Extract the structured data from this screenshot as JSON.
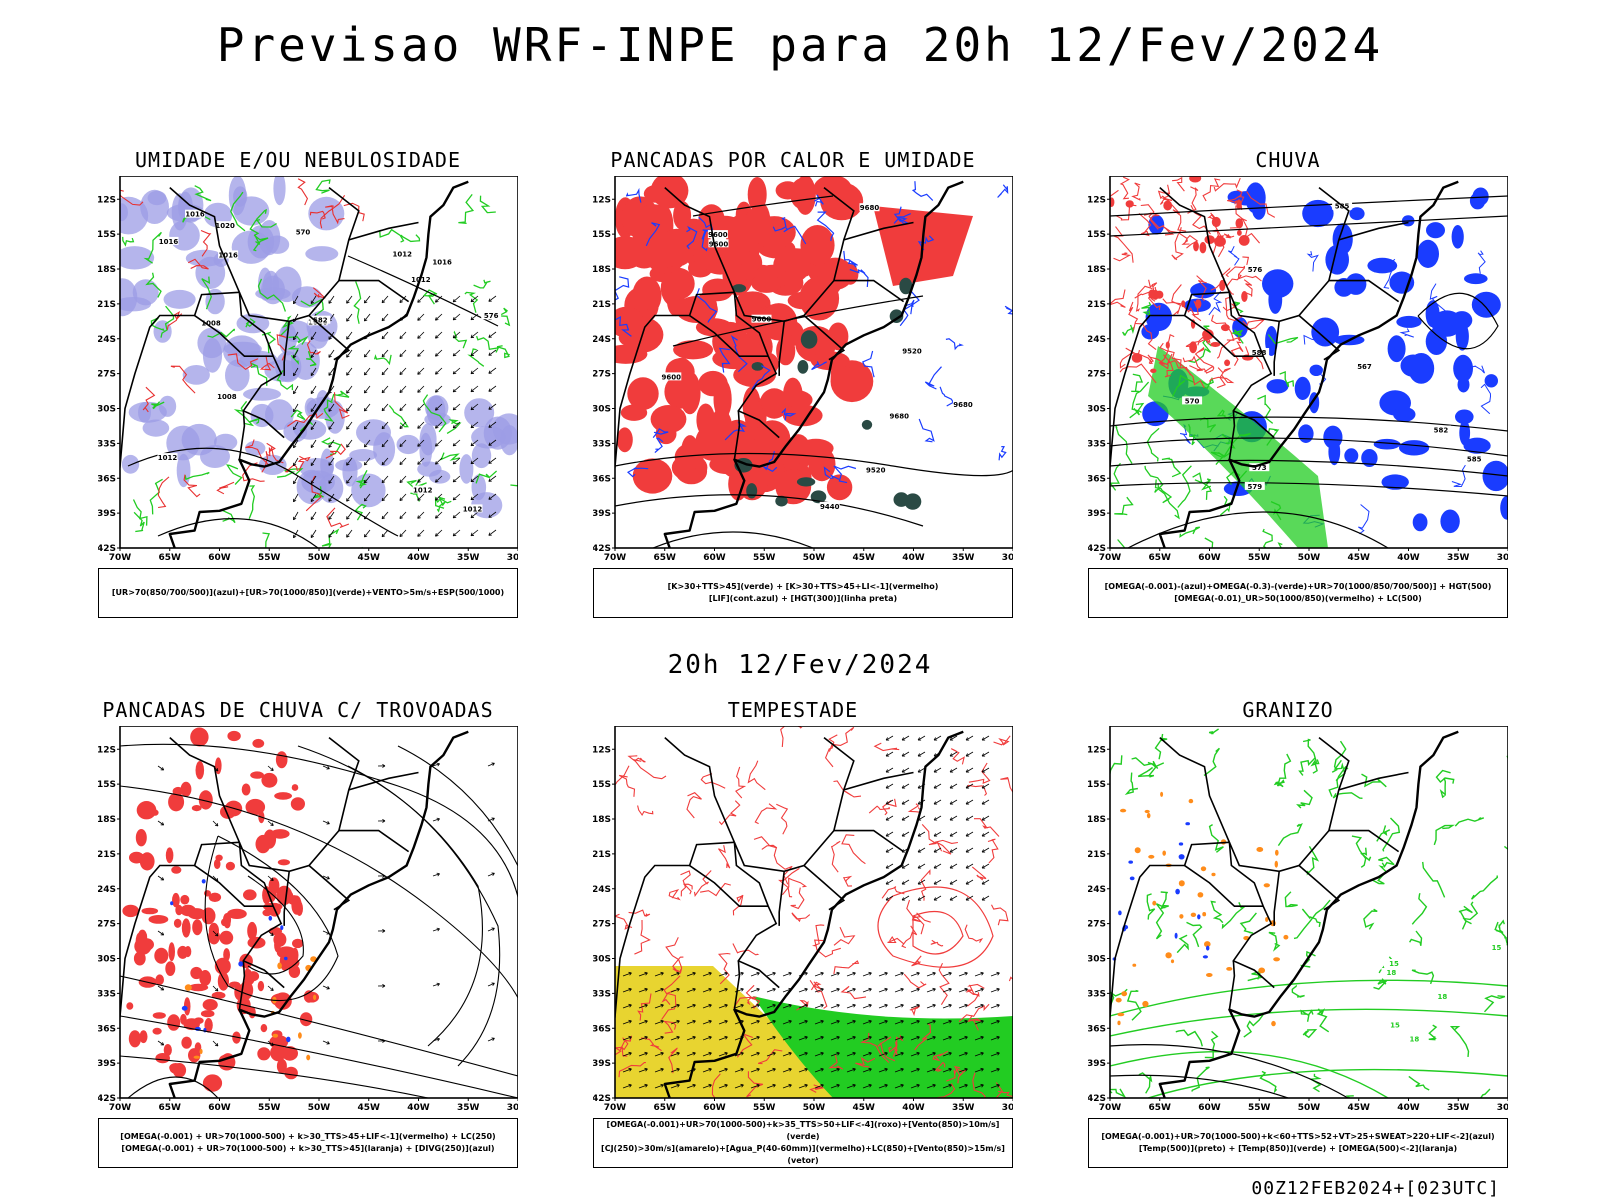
{
  "header": {
    "title": "Previsao WRF-INPE  para 20h 12/Fev/2024"
  },
  "mid_date": "20h 12/Fev/2024",
  "footer": "00Z12FEB2024+[023UTC]",
  "axes": {
    "lat_ticks": [
      "12S",
      "15S",
      "18S",
      "21S",
      "24S",
      "27S",
      "30S",
      "33S",
      "36S",
      "39S",
      "42S"
    ],
    "lon_ticks": [
      "70W",
      "65W",
      "60W",
      "55W",
      "50W",
      "45W",
      "40W",
      "35W",
      "30W"
    ]
  },
  "panels": [
    {
      "title": "UMIDADE E/OU NEBULOSIDADE",
      "legend_lines": [
        "[UR>70(850/700/500)](azul)+[UR>70(1000/850)](verde)+VENTO>5m/s+ESP(500/1000)"
      ],
      "colors": [
        "#9c9ce6",
        "#22cc22",
        "#e83030"
      ],
      "contour_labels": [
        "1016",
        "1012",
        "1012",
        "1016",
        "1016",
        "1012",
        "1012",
        "1008",
        "1016",
        "1012",
        "1008",
        "1020",
        "1016",
        "576",
        "582",
        "570"
      ]
    },
    {
      "title": "PANCADAS POR CALOR E UMIDADE",
      "legend_lines": [
        "[K>30+TTS>45](verde) + [K>30+TTS>45+LI<-1](vermelho)",
        "[LIF](cont.azul) + [HGT(300)](linha preta)"
      ],
      "colors": [
        "#f03c3c",
        "#2a4a44",
        "#1a3cff"
      ],
      "contour_labels": [
        "9680",
        "9680",
        "9600",
        "9680",
        "9600",
        "9600",
        "9520",
        "9440",
        "9520",
        "9600"
      ]
    },
    {
      "title": "CHUVA",
      "legend_lines": [
        "[OMEGA(-0.001)-(azul)+OMEGA(-0.3)-(verde)+UR>70(1000/850/700/500)] + HGT(500)",
        "[OMEGA(-0.01)_UR>50(1000/850)(vermelho) + LC(500)"
      ],
      "colors": [
        "#1a3cff",
        "#22cc22",
        "#f03c3c"
      ],
      "contour_labels": [
        "588",
        "585",
        "585",
        "582",
        "579",
        "576",
        "573",
        "570",
        "567"
      ]
    },
    {
      "title": "PANCADAS DE CHUVA C/ TROVOADAS",
      "legend_lines": [
        "[OMEGA(-0.001) + UR>70(1000-500) + k>30_TTS>45+LIF<-1](vermelho) + LC(250)",
        "[OMEGA(-0.001) + UR>70(1000-500) + k>30_TTS>45](laranja) + [DIVG(250)](azul)"
      ],
      "colors": [
        "#f03c3c",
        "#ff8c1a",
        "#1a3cff"
      ],
      "contour_labels": []
    },
    {
      "title": "TEMPESTADE",
      "legend_lines": [
        "[OMEGA(-0.001)+UR>70(1000-500)+k>35_TTS>50+LIF<-4](roxo)+[Vento(850)>10m/s](verde)",
        "[CJ(250)>30m/s](amarelo)+[Agua_P(40-60mm)](vermelho)+LC(850)+[Vento(850)>15m/s](vetor)"
      ],
      "colors": [
        "#e8d430",
        "#22cc22",
        "#f03c3c"
      ],
      "contour_labels": []
    },
    {
      "title": "GRANIZO",
      "legend_lines": [
        "[OMEGA(-0.001)+UR>70(1000-500)+k<60+TTS>52+VT>25+SWEAT>220+LIF<-2](azul)",
        "[Temp(500)](preto) + [Temp(850)](verde) + [OMEGA(500)<-2](laranja)"
      ],
      "colors": [
        "#22cc22",
        "#ff8c1a",
        "#1a3cff"
      ],
      "contour_labels": [
        "18",
        "18",
        "15",
        "18",
        "15",
        "15"
      ]
    }
  ]
}
